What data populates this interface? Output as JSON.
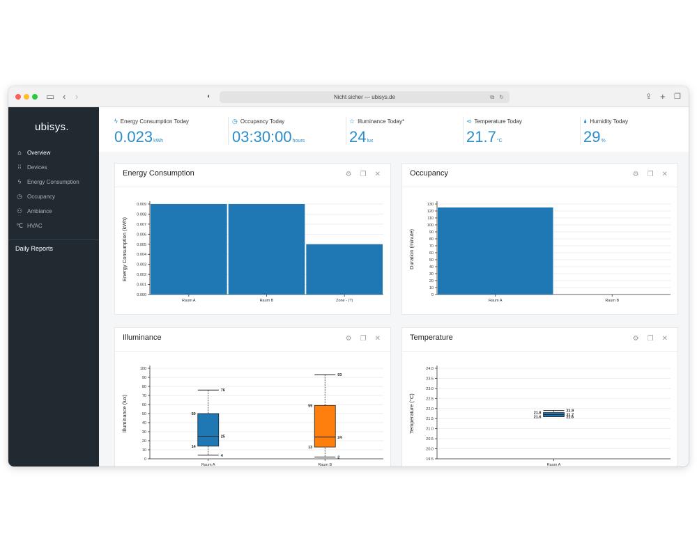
{
  "browser": {
    "url": "Nicht sicher — ubisys.de"
  },
  "sidebar": {
    "logo": "ubisys.",
    "items": [
      {
        "label": "Overview",
        "icon": "home-icon"
      },
      {
        "label": "Devices",
        "icon": "grid-icon"
      },
      {
        "label": "Energy Consumption",
        "icon": "lightning-icon"
      },
      {
        "label": "Occupancy",
        "icon": "clock-icon"
      },
      {
        "label": "Ambiance",
        "icon": "people-icon"
      },
      {
        "label": "HVAC",
        "icon": "thermometer-icon"
      }
    ],
    "daily_reports": "Daily Reports"
  },
  "kpis": [
    {
      "title": "Energy Consumption Today",
      "value": "0.023",
      "unit": "kWh",
      "icon": "lightning-icon"
    },
    {
      "title": "Occupancy Today",
      "value": "03:30:00",
      "unit": "hours",
      "icon": "clock-icon"
    },
    {
      "title": "Illuminance Today*",
      "value": "24",
      "unit": "lux",
      "icon": "star-icon"
    },
    {
      "title": "Temperature Today",
      "value": "21.7",
      "unit": "°C",
      "icon": "share-icon"
    },
    {
      "title": "Humidity Today",
      "value": "29",
      "unit": "%",
      "icon": "drop-icon"
    }
  ],
  "cards": {
    "energy": {
      "title": "Energy Consumption"
    },
    "occupancy": {
      "title": "Occupancy"
    },
    "illuminance": {
      "title": "Illuminance"
    },
    "temperature": {
      "title": "Temperature"
    }
  },
  "colors": {
    "accent": "#2a8cc9",
    "bar_blue": "#1f77b4",
    "orange": "#ff7f0e",
    "sidebar": "#222a31"
  },
  "chart_data": [
    {
      "type": "bar",
      "title": "Energy Consumption",
      "ylabel": "Energy Consumption (kWh)",
      "categories": [
        "Raum A",
        "Raum B",
        "Zone - (?)"
      ],
      "values": [
        0.009,
        0.009,
        0.005
      ],
      "ylim": [
        0,
        0.009
      ],
      "yticks": [
        "0.000",
        "0.001",
        "0.002",
        "0.003",
        "0.004",
        "0.005",
        "0.006",
        "0.007",
        "0.008",
        "0.009"
      ]
    },
    {
      "type": "bar",
      "title": "Occupancy",
      "ylabel": "Duration (minute)",
      "categories": [
        "Raum A",
        "Raum B"
      ],
      "values": [
        125,
        0
      ],
      "ylim": [
        0,
        130
      ],
      "yticks": [
        "0",
        "10",
        "20",
        "30",
        "40",
        "50",
        "60",
        "70",
        "80",
        "90",
        "100",
        "110",
        "120",
        "130"
      ]
    },
    {
      "type": "box",
      "title": "Illuminance",
      "ylabel": "Illuminance (lux)",
      "categories": [
        "Raum A",
        "Raum B"
      ],
      "boxes": [
        {
          "min": 4,
          "q1": 14,
          "median": 25,
          "q3": 50,
          "max": 76,
          "labels": [
            "4",
            "14",
            "25",
            "50",
            "76"
          ]
        },
        {
          "min": 2,
          "q1": 13,
          "median": 24,
          "q3": 59,
          "max": 93,
          "labels": [
            "2",
            "13",
            "24",
            "59",
            "93"
          ]
        }
      ],
      "ylim": [
        0,
        100
      ],
      "yticks": [
        "0",
        "10",
        "20",
        "30",
        "40",
        "50",
        "60",
        "70",
        "80",
        "90",
        "100"
      ]
    },
    {
      "type": "box",
      "title": "Temperature",
      "ylabel": "Temperature (°C)",
      "categories": [
        "Raum A"
      ],
      "boxes": [
        {
          "min": 21.6,
          "q1": 21.6,
          "median": 21.7,
          "q3": 21.8,
          "max": 21.9,
          "labels": [
            "21.6",
            "21.6",
            "21.7",
            "21.8",
            "21.9"
          ]
        }
      ],
      "ylim": [
        19.5,
        24.0
      ],
      "yticks": [
        "19.5",
        "20.0",
        "20.5",
        "21.0",
        "21.5",
        "22.0",
        "22.5",
        "23.0",
        "23.5",
        "24.0"
      ]
    }
  ]
}
